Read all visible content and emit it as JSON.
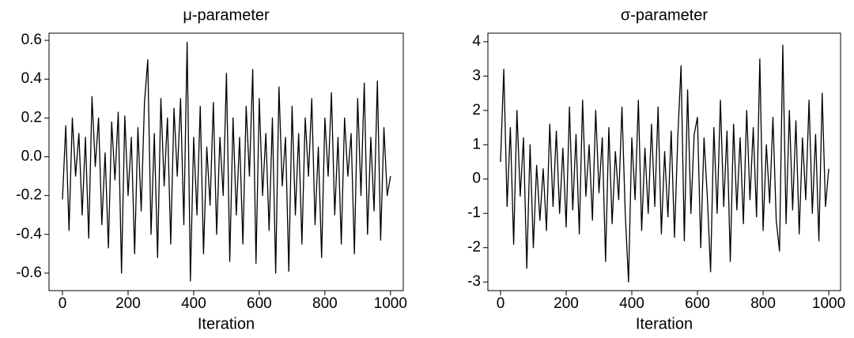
{
  "chart_data": [
    {
      "type": "line",
      "title": "μ-parameter",
      "x_label": "Iteration",
      "color": "#000000",
      "x": [
        0,
        10,
        20,
        30,
        40,
        50,
        60,
        70,
        80,
        90,
        100,
        110,
        120,
        130,
        140,
        150,
        160,
        170,
        180,
        190,
        200,
        210,
        220,
        230,
        240,
        250,
        260,
        270,
        280,
        290,
        300,
        310,
        320,
        330,
        340,
        350,
        360,
        370,
        380,
        390,
        400,
        410,
        420,
        430,
        440,
        450,
        460,
        470,
        480,
        490,
        500,
        510,
        520,
        530,
        540,
        550,
        560,
        570,
        580,
        590,
        600,
        610,
        620,
        630,
        640,
        650,
        660,
        670,
        680,
        690,
        700,
        710,
        720,
        730,
        740,
        750,
        760,
        770,
        780,
        790,
        800,
        810,
        820,
        830,
        840,
        850,
        860,
        870,
        880,
        890,
        900,
        910,
        920,
        930,
        940,
        950,
        960,
        970,
        980,
        990,
        1000
      ],
      "values": [
        -0.22,
        0.16,
        -0.38,
        0.2,
        -0.1,
        0.12,
        -0.3,
        0.1,
        -0.42,
        0.31,
        -0.05,
        0.2,
        -0.35,
        0.02,
        -0.47,
        0.18,
        -0.12,
        0.23,
        -0.6,
        0.21,
        -0.2,
        0.1,
        -0.5,
        0.15,
        -0.28,
        0.28,
        0.5,
        -0.4,
        0.12,
        -0.52,
        0.3,
        -0.15,
        0.2,
        -0.45,
        0.25,
        -0.1,
        0.3,
        -0.35,
        0.59,
        -0.64,
        0.1,
        -0.3,
        0.26,
        -0.5,
        0.05,
        -0.25,
        0.28,
        -0.4,
        0.1,
        -0.2,
        0.43,
        -0.54,
        0.2,
        -0.3,
        0.1,
        -0.45,
        0.26,
        -0.1,
        0.45,
        -0.55,
        0.3,
        -0.2,
        0.12,
        -0.38,
        0.2,
        -0.6,
        0.36,
        -0.15,
        0.1,
        -0.59,
        0.26,
        -0.3,
        0.12,
        -0.45,
        0.2,
        -0.1,
        0.3,
        -0.35,
        0.05,
        -0.52,
        0.2,
        -0.1,
        0.33,
        -0.3,
        0.1,
        -0.45,
        0.2,
        -0.1,
        0.12,
        -0.5,
        0.3,
        -0.2,
        0.38,
        -0.4,
        0.1,
        -0.28,
        0.39,
        -0.43,
        0.15,
        -0.2,
        -0.1
      ],
      "xlim": [
        -41,
        1039
      ],
      "xticks": [
        0,
        200,
        400,
        600,
        800,
        1000
      ],
      "ylim": [
        -0.69,
        0.637
      ],
      "yticks": [
        -0.6,
        -0.4,
        -0.2,
        {
          "value": 0,
          "label": "0.0"
        },
        0.2,
        0.4,
        0.6
      ]
    },
    {
      "type": "line",
      "title": "σ-parameter",
      "x_label": "Iteration",
      "color": "#000000",
      "x": [
        0,
        10,
        20,
        30,
        40,
        50,
        60,
        70,
        80,
        90,
        100,
        110,
        120,
        130,
        140,
        150,
        160,
        170,
        180,
        190,
        200,
        210,
        220,
        230,
        240,
        250,
        260,
        270,
        280,
        290,
        300,
        310,
        320,
        330,
        340,
        350,
        360,
        370,
        380,
        390,
        400,
        410,
        420,
        430,
        440,
        450,
        460,
        470,
        480,
        490,
        500,
        510,
        520,
        530,
        540,
        550,
        560,
        570,
        580,
        590,
        600,
        610,
        620,
        630,
        640,
        650,
        660,
        670,
        680,
        690,
        700,
        710,
        720,
        730,
        740,
        750,
        760,
        770,
        780,
        790,
        800,
        810,
        820,
        830,
        840,
        850,
        860,
        870,
        880,
        890,
        900,
        910,
        920,
        930,
        940,
        950,
        960,
        970,
        980,
        990,
        1000
      ],
      "values": [
        0.5,
        3.2,
        -0.8,
        1.5,
        -1.9,
        2.0,
        -0.5,
        1.2,
        -2.6,
        1.0,
        -2.0,
        0.4,
        -1.2,
        0.3,
        -1.5,
        1.6,
        -0.8,
        1.4,
        -1.0,
        0.9,
        -1.4,
        2.1,
        -0.9,
        1.3,
        -1.6,
        2.3,
        -0.5,
        1.0,
        -1.2,
        2.0,
        -0.4,
        1.2,
        -2.4,
        1.5,
        -1.3,
        0.8,
        -0.6,
        2.1,
        -1.0,
        -3.0,
        1.2,
        -0.6,
        2.3,
        -1.5,
        0.9,
        -1.0,
        1.6,
        -0.8,
        2.1,
        -1.6,
        0.8,
        -1.1,
        1.4,
        -1.7,
        1.2,
        3.3,
        -1.8,
        2.6,
        -1.0,
        1.3,
        1.8,
        -2.0,
        1.2,
        -0.5,
        -2.7,
        1.5,
        -1.0,
        2.3,
        -0.8,
        1.4,
        -2.4,
        1.6,
        -0.9,
        1.2,
        -1.3,
        2.0,
        -0.6,
        1.5,
        -1.1,
        3.5,
        -1.5,
        1.0,
        -0.7,
        1.8,
        -1.2,
        -2.1,
        3.9,
        -1.3,
        2.0,
        -0.9,
        1.7,
        -1.6,
        1.2,
        -0.6,
        2.3,
        -1.0,
        1.3,
        -1.8,
        2.5,
        -0.8,
        0.3
      ],
      "xlim": [
        -38.5,
        1036
      ],
      "xticks": [
        0,
        200,
        400,
        600,
        800,
        1000
      ],
      "ylim": [
        -3.25,
        4.25
      ],
      "yticks": [
        -3,
        -2,
        -1,
        0,
        1,
        2,
        3,
        4
      ]
    }
  ]
}
